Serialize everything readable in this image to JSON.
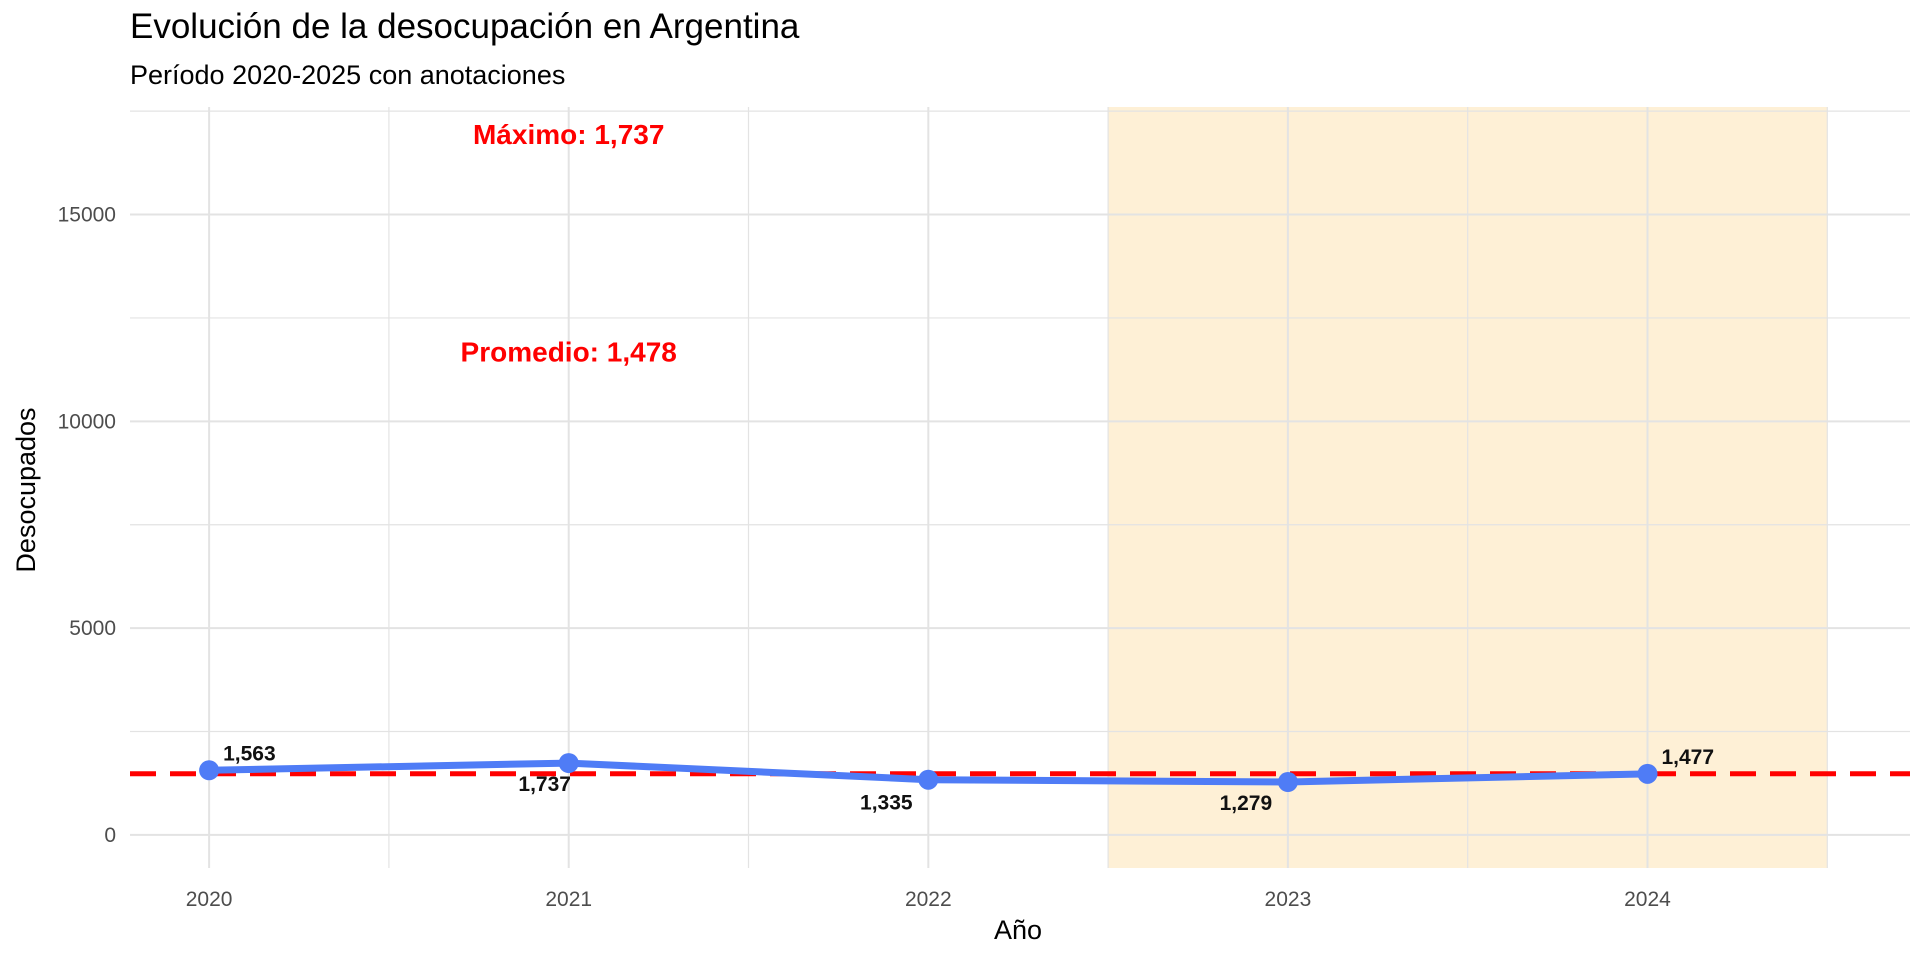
{
  "chart_data": {
    "type": "line",
    "title": "Evolución de la desocupación en Argentina",
    "subtitle": "Período 2020-2025 con anotaciones",
    "xlabel": "Año",
    "ylabel": "Desocupados",
    "x": [
      2020,
      2021,
      2022,
      2023,
      2024
    ],
    "x_tick_labels": [
      "2020",
      "2021",
      "2022",
      "2023",
      "2024"
    ],
    "xlim": [
      2019.78,
      2024.73
    ],
    "ylim": [
      -800,
      17600
    ],
    "y_ticks": [
      0,
      5000,
      10000,
      15000
    ],
    "y_tick_labels": [
      "0",
      "5000",
      "10000",
      "15000"
    ],
    "grid": true,
    "series": [
      {
        "values": [
          1563,
          1737,
          1335,
          1279,
          1477
        ],
        "labels": [
          "1,563",
          "1,737",
          "1,335",
          "1,279",
          "1,477"
        ],
        "color": "#4f7cf6"
      }
    ],
    "reference_line": {
      "value": 1478,
      "style": "dashed",
      "color": "#ff0000"
    },
    "shaded_region": {
      "x_range": [
        2022.5,
        2024.5
      ],
      "color": "#fdebc8"
    },
    "annotations": [
      {
        "text": "Máximo: 1,737",
        "x": 2021,
        "y": 16700,
        "color": "#ff0000"
      },
      {
        "text": "Promedio: 1,478",
        "x": 2021,
        "y": 11450,
        "color": "#ff0000"
      }
    ]
  }
}
